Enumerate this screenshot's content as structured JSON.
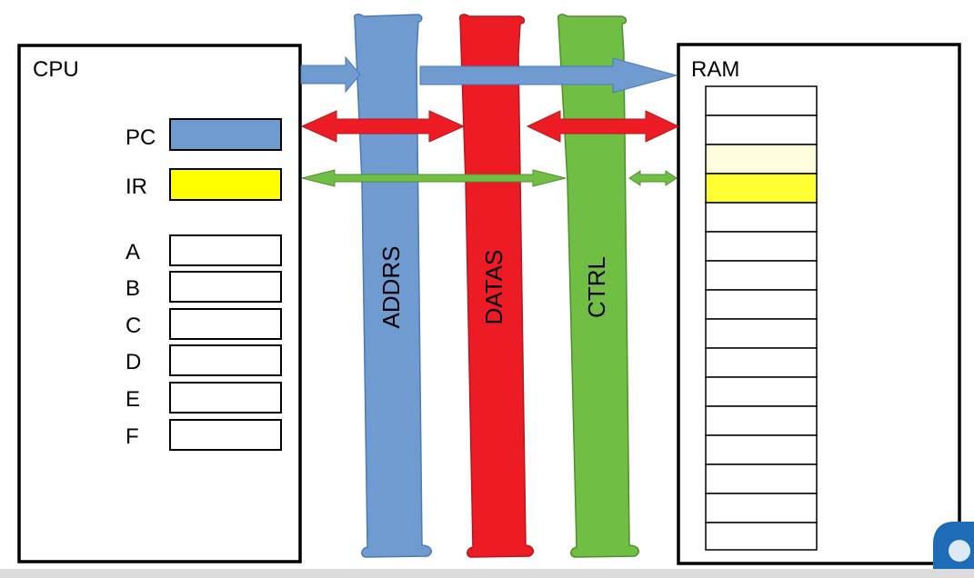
{
  "cpu": {
    "label": "CPU",
    "registers": [
      {
        "label": "PC",
        "fill": "#6f9bd1"
      },
      {
        "label": "IR",
        "fill": "#ffff00"
      },
      {
        "label": "A",
        "fill": "#ffffff"
      },
      {
        "label": "B",
        "fill": "#ffffff"
      },
      {
        "label": "C",
        "fill": "#ffffff"
      },
      {
        "label": "D",
        "fill": "#ffffff"
      },
      {
        "label": "E",
        "fill": "#ffffff"
      },
      {
        "label": "F",
        "fill": "#ffffff"
      }
    ]
  },
  "ram": {
    "label": "RAM",
    "cells": [
      {
        "fill": "#ffffff"
      },
      {
        "fill": "#ffffff"
      },
      {
        "fill": "#ffffe0"
      },
      {
        "fill": "#ffff33"
      },
      {
        "fill": "#ffffff"
      },
      {
        "fill": "#ffffff"
      },
      {
        "fill": "#ffffff"
      },
      {
        "fill": "#ffffff"
      },
      {
        "fill": "#ffffff"
      },
      {
        "fill": "#ffffff"
      },
      {
        "fill": "#ffffff"
      },
      {
        "fill": "#ffffff"
      },
      {
        "fill": "#ffffff"
      },
      {
        "fill": "#ffffff"
      },
      {
        "fill": "#ffffff"
      },
      {
        "fill": "#ffffff"
      }
    ]
  },
  "buses": [
    {
      "label": "ADDRS",
      "color": "#6f9bd1"
    },
    {
      "label": "DATAS",
      "color": "#ed1c24"
    },
    {
      "label": "CTRL",
      "color": "#71be45"
    }
  ],
  "colors": {
    "address_arrow": "#6f9bd1",
    "data_arrow": "#ed1c24",
    "control_arrow": "#71be45",
    "outline": "#000000"
  }
}
